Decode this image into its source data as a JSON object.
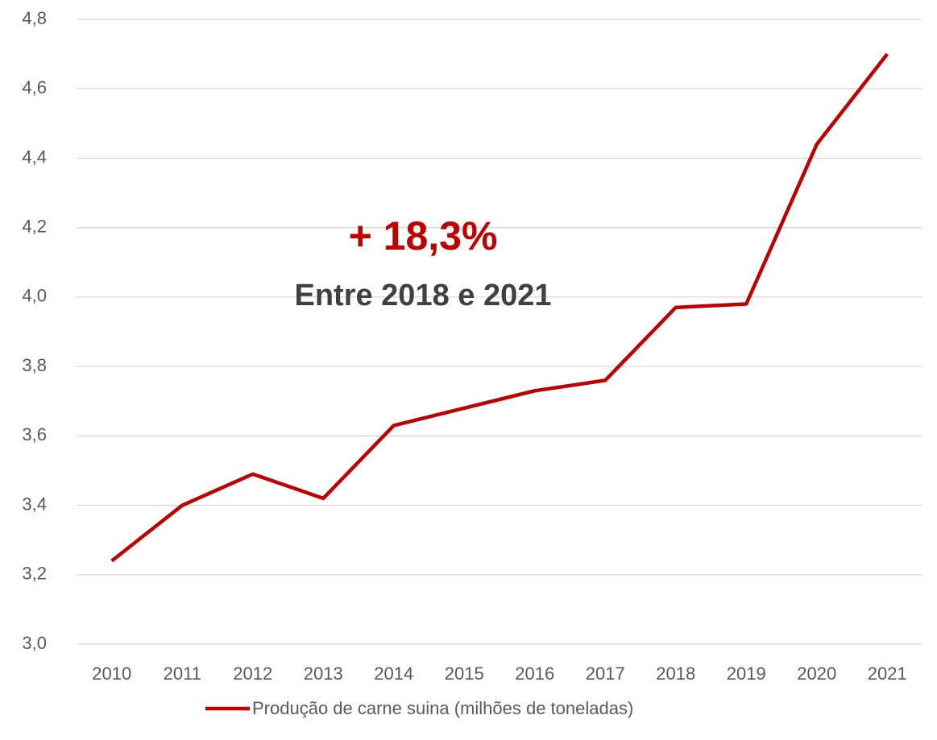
{
  "chart_data": {
    "type": "line",
    "annotations": [
      "+ 18,3%",
      "Entre 2018 e 2021"
    ],
    "categories": [
      "2010",
      "2011",
      "2012",
      "2013",
      "2014",
      "2015",
      "2016",
      "2017",
      "2018",
      "2019",
      "2020",
      "2021"
    ],
    "series": [
      {
        "name": "Produção de carne suina (milhões de toneladas)",
        "color": "#c00000",
        "values": [
          3.24,
          3.4,
          3.49,
          3.42,
          3.63,
          3.68,
          3.73,
          3.76,
          3.97,
          3.98,
          4.44,
          4.7
        ]
      }
    ],
    "ylim": [
      3.0,
      4.8
    ],
    "yticks": [
      {
        "value": 3.0,
        "label": "3,0"
      },
      {
        "value": 3.2,
        "label": "3,2"
      },
      {
        "value": 3.4,
        "label": "3,4"
      },
      {
        "value": 3.6,
        "label": "3,6"
      },
      {
        "value": 3.8,
        "label": "3,8"
      },
      {
        "value": 4.0,
        "label": "4,0"
      },
      {
        "value": 4.2,
        "label": "4,2"
      },
      {
        "value": 4.4,
        "label": "4,4"
      },
      {
        "value": 4.6,
        "label": "4,6"
      },
      {
        "value": 4.8,
        "label": "4,8"
      }
    ],
    "grid": true,
    "legend": "bottom"
  }
}
